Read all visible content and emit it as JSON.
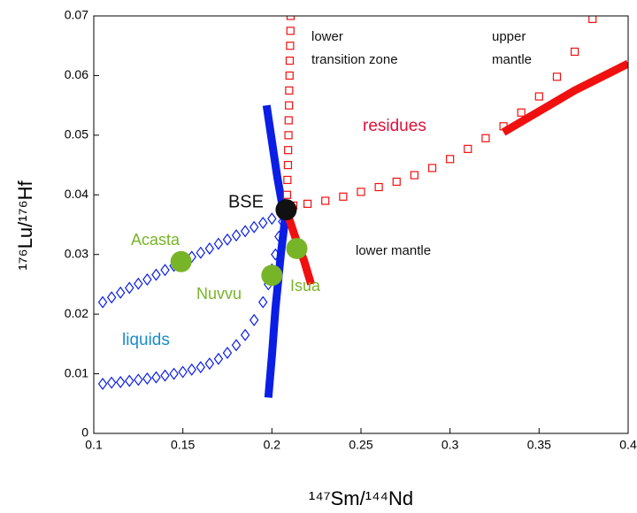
{
  "chart_data": {
    "type": "scatter",
    "x_label": "¹⁴⁷Sm/¹⁴⁴Nd",
    "y_label": "¹⁷⁶Lu/¹⁷⁶Hf",
    "xlim": [
      0.1,
      0.4
    ],
    "ylim": [
      0,
      0.07
    ],
    "xticks": [
      0.1,
      0.15,
      0.2,
      0.25,
      0.3,
      0.35,
      0.4
    ],
    "yticks": [
      0,
      0.01,
      0.02,
      0.03,
      0.04,
      0.05,
      0.06,
      0.07
    ],
    "grid": false,
    "series": [
      {
        "marker": "diamond",
        "color": "#0a1ee6",
        "x": [
          0.105,
          0.11,
          0.115,
          0.12,
          0.125,
          0.13,
          0.135,
          0.14,
          0.145,
          0.15,
          0.155,
          0.16,
          0.165,
          0.17,
          0.175,
          0.18,
          0.185,
          0.19,
          0.195,
          0.2,
          0.205
        ],
        "values": [
          0.022,
          0.0228,
          0.0236,
          0.0244,
          0.0251,
          0.0258,
          0.0266,
          0.0274,
          0.0281,
          0.0288,
          0.0296,
          0.0303,
          0.031,
          0.0318,
          0.0325,
          0.0332,
          0.0339,
          0.0346,
          0.0353,
          0.036,
          0.0368
        ]
      },
      {
        "marker": "diamond",
        "color": "#0a1ee6",
        "x": [
          0.105,
          0.11,
          0.115,
          0.12,
          0.125,
          0.13,
          0.135,
          0.14,
          0.145,
          0.15,
          0.155,
          0.16,
          0.165,
          0.17,
          0.175,
          0.18,
          0.185,
          0.19,
          0.195,
          0.198,
          0.2,
          0.202,
          0.204,
          0.206,
          0.208
        ],
        "values": [
          0.0083,
          0.0085,
          0.0086,
          0.0088,
          0.009,
          0.0092,
          0.0094,
          0.0097,
          0.01,
          0.0103,
          0.0107,
          0.0111,
          0.0117,
          0.0125,
          0.0135,
          0.0148,
          0.0165,
          0.019,
          0.022,
          0.025,
          0.0275,
          0.03,
          0.033,
          0.0355,
          0.0375
        ]
      },
      {
        "marker": "line",
        "color": "#0a1ee6",
        "x": [
          0.197,
          0.2,
          0.203,
          0.206,
          0.208,
          0.205,
          0.202,
          0.2,
          0.198
        ],
        "values": [
          0.055,
          0.049,
          0.043,
          0.038,
          0.0375,
          0.03,
          0.021,
          0.013,
          0.006
        ]
      },
      {
        "marker": "square",
        "color": "#f01010",
        "x": [
          0.212,
          0.22,
          0.23,
          0.24,
          0.25,
          0.26,
          0.27,
          0.28,
          0.29,
          0.3,
          0.31,
          0.32,
          0.33,
          0.34,
          0.35,
          0.36,
          0.37,
          0.38
        ],
        "values": [
          0.0382,
          0.0385,
          0.039,
          0.0397,
          0.0405,
          0.0413,
          0.0422,
          0.0433,
          0.0445,
          0.046,
          0.0477,
          0.0495,
          0.0515,
          0.0538,
          0.0565,
          0.0598,
          0.064,
          0.0695
        ]
      },
      {
        "marker": "square",
        "color": "#f01010",
        "x": [
          0.2085,
          0.2087,
          0.209,
          0.2091,
          0.2093,
          0.2094,
          0.2096,
          0.2097,
          0.2099,
          0.21,
          0.2102,
          0.2104,
          0.2105
        ],
        "values": [
          0.04,
          0.0425,
          0.045,
          0.0475,
          0.05,
          0.0525,
          0.055,
          0.0575,
          0.06,
          0.0625,
          0.065,
          0.0675,
          0.07
        ]
      },
      {
        "marker": "line",
        "color": "#f01010",
        "x": [
          0.208,
          0.213,
          0.218,
          0.222
        ],
        "values": [
          0.0375,
          0.033,
          0.029,
          0.025
        ]
      },
      {
        "marker": "line",
        "color": "#f01010",
        "x": [
          0.33,
          0.35,
          0.37,
          0.39,
          0.4
        ],
        "values": [
          0.0505,
          0.054,
          0.0575,
          0.0605,
          0.062
        ]
      },
      {
        "marker": "circle",
        "color": "#78b428",
        "x": [
          0.149,
          0.2,
          0.214
        ],
        "values": [
          0.0288,
          0.0265,
          0.031
        ],
        "labels": [
          "Acasta",
          "Nuvvu",
          "Isua"
        ]
      },
      {
        "marker": "circle",
        "color": "#111111",
        "x": [
          0.208
        ],
        "values": [
          0.0375
        ],
        "labels": [
          "BSE"
        ]
      }
    ],
    "annotations": [
      {
        "text": "lower",
        "color": "#111111"
      },
      {
        "text": "transition zone",
        "color": "#111111"
      },
      {
        "text": "upper",
        "color": "#111111"
      },
      {
        "text": "mantle",
        "color": "#111111"
      },
      {
        "text": "residues",
        "color": "#e0103a"
      },
      {
        "text": "lower mantle",
        "color": "#111111"
      },
      {
        "text": "liquids",
        "color": "#1a8ccc"
      }
    ]
  }
}
